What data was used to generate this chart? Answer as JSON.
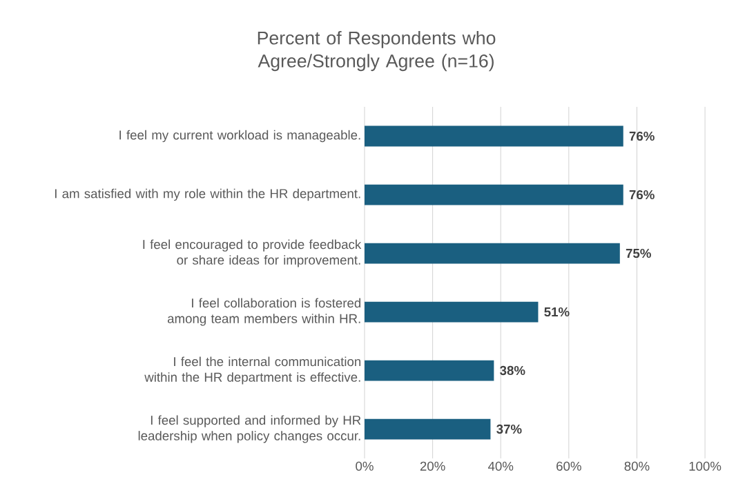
{
  "chart_data": {
    "type": "bar",
    "orientation": "horizontal",
    "title": "Percent of Respondents who Agree/Strongly Agree (n=16)",
    "categories": [
      "I feel my current workload is manageable.",
      "I am satisfied with my role within the HR department.",
      "I feel encouraged to provide feedback or share ideas for improvement.",
      "I feel collaboration is fostered among team members within HR.",
      "I feel the internal communication within the HR department is effective.",
      "I feel supported and informed by HR leadership when policy changes occur."
    ],
    "values": [
      76,
      76,
      75,
      51,
      38,
      37
    ],
    "value_labels": [
      "76%",
      "76%",
      "75%",
      "51%",
      "38%",
      "37%"
    ],
    "color": "#1a5f80",
    "xlim": [
      0,
      100
    ],
    "xticks": [
      {
        "value": 0,
        "label": "0%"
      },
      {
        "value": 20,
        "label": "20%"
      },
      {
        "value": 40,
        "label": "40%"
      },
      {
        "value": 60,
        "label": "60%"
      },
      {
        "value": 80,
        "label": "80%"
      },
      {
        "value": 100,
        "label": "100%"
      }
    ],
    "grid": "x"
  }
}
